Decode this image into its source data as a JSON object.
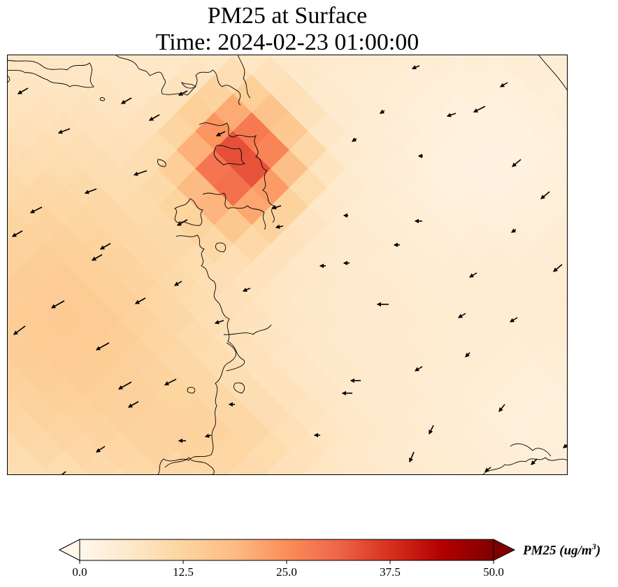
{
  "title": {
    "line1": "PM25 at Surface",
    "line2": "Time: 2024-02-23 01:00:00"
  },
  "colorbar": {
    "label": "PM25 (ug/m",
    "label_exponent": "3",
    "label_close": ")",
    "min": 0.0,
    "max": 50.0,
    "extend": "both",
    "ticks": [
      "0.0",
      "12.5",
      "25.0",
      "37.5",
      "50.0"
    ],
    "tick_values": [
      0.0,
      12.5,
      25.0,
      37.5,
      50.0
    ],
    "colormap": "OrRd",
    "colormap_stops": [
      "#fff7ec",
      "#fee8c8",
      "#fdd49e",
      "#fdbb84",
      "#fc8d59",
      "#ef6548",
      "#d7301f",
      "#b30000",
      "#7f0000"
    ]
  },
  "map": {
    "variable": "PM25",
    "coastline_color": "#000000",
    "wind_vector_color": "#000000",
    "hotspot_peak_value": 34,
    "background_value": 5
  }
}
